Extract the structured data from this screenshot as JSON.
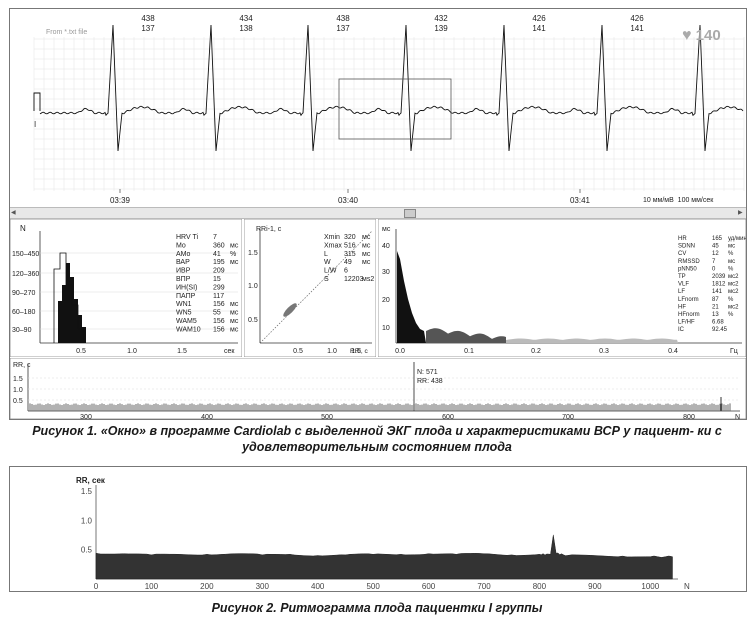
{
  "figure1": {
    "ecg": {
      "source": "From *.txt file",
      "heart_rate": "140",
      "heart_rate_icon": "heart-icon",
      "markers": [
        {
          "top": "438",
          "bottom": "137"
        },
        {
          "top": "434",
          "bottom": "138"
        },
        {
          "top": "438",
          "bottom": "137"
        },
        {
          "top": "432",
          "bottom": "139"
        },
        {
          "top": "426",
          "bottom": "141"
        },
        {
          "top": "426",
          "bottom": "141"
        }
      ],
      "time_labels": [
        "03:39",
        "03:40",
        "03:41"
      ],
      "scale_label": "10 мм/мВ  100 мм/сек",
      "lead_label": "I"
    },
    "histogram": {
      "ylabel": "N",
      "xlabel": "сек",
      "yticks": [
        "150–450",
        "120–360",
        "90–270",
        "60–180",
        "30–90"
      ],
      "xticks": [
        "0.5",
        "1.0",
        "1.5"
      ],
      "stats": [
        [
          "HRV Ti",
          "7",
          ""
        ],
        [
          "Mo",
          "360",
          "мс"
        ],
        [
          "AMo",
          "41",
          "%"
        ],
        [
          "ВАР",
          "195",
          "мс"
        ],
        [
          "ИВР",
          "209",
          ""
        ],
        [
          "ВПР",
          "15",
          ""
        ],
        [
          "ИН(SI)",
          "299",
          ""
        ],
        [
          "ПАПР",
          "117",
          ""
        ],
        [
          "WN1",
          "156",
          "мс"
        ],
        [
          "WN5",
          "55",
          "мс"
        ],
        [
          "WAM5",
          "156",
          "мс"
        ],
        [
          "WAM10",
          "156",
          "мс"
        ]
      ]
    },
    "scatter": {
      "ylabel": "RRi-1, с",
      "xlabel": "RRi, с",
      "yticks": [
        "1.5",
        "1.0",
        "0.5"
      ],
      "xticks": [
        "0.5",
        "1.0",
        "1.5"
      ],
      "stats": [
        [
          "Xmin",
          "320",
          "мс"
        ],
        [
          "Xmax",
          "516",
          "мс"
        ],
        [
          "L",
          "315",
          "мс"
        ],
        [
          "W",
          "49",
          "мс"
        ],
        [
          "L/W",
          "6",
          ""
        ],
        [
          "S",
          "12203",
          "мs2"
        ]
      ]
    },
    "spectrum": {
      "ylabel": "мс",
      "xlabel": "Гц",
      "yticks": [
        "40",
        "30",
        "20",
        "10"
      ],
      "xticks": [
        "0.0",
        "0.1",
        "0.2",
        "0.3",
        "0.4"
      ],
      "stats": [
        [
          "HR",
          "165",
          "уд/мин"
        ],
        [
          "SDNN",
          "45",
          "мс"
        ],
        [
          "CV",
          "12",
          "%"
        ],
        [
          "RMSSD",
          "7",
          "мс"
        ],
        [
          "pNN50",
          "0",
          "%"
        ],
        [
          "TP",
          "2039",
          "мс2"
        ],
        [
          "VLF",
          "1812",
          "мс2"
        ],
        [
          "LF",
          "141",
          "мс2"
        ],
        [
          "LFnorm",
          "87",
          "%"
        ],
        [
          "HF",
          "21",
          "мс2"
        ],
        [
          "HFnorm",
          "13",
          "%"
        ],
        [
          "LF/HF",
          "6.68",
          ""
        ],
        [
          "IC",
          "92.45",
          ""
        ]
      ]
    },
    "rhythm": {
      "ylabel": "RR, с",
      "xlabel": "N",
      "yticks": [
        "1.5",
        "1.0",
        "0.5"
      ],
      "xticks": [
        "300",
        "400",
        "500",
        "600",
        "700",
        "800"
      ],
      "cursor_n": "N: 571",
      "cursor_rr": "RR: 438"
    },
    "caption": "Рисунок 1. «Окно» в программе Cardiolab с выделенной ЭКГ плода и характеристиками ВСР у пациент- ки с удовлетворительным состоянием плода"
  },
  "figure2": {
    "chart_data": {
      "type": "area",
      "title": "",
      "ylabel": "RR, сек",
      "xlabel": "N",
      "xlim": [
        0,
        1050
      ],
      "ylim": [
        0,
        1.6
      ],
      "yticks": [
        "1.5",
        "1.0",
        "0.5"
      ],
      "xticks": [
        "0",
        "100",
        "200",
        "300",
        "400",
        "500",
        "600",
        "700",
        "800",
        "900",
        "1000"
      ],
      "x": [
        0,
        50,
        100,
        150,
        200,
        250,
        300,
        350,
        400,
        450,
        500,
        550,
        600,
        650,
        700,
        750,
        800,
        820,
        825,
        830,
        850,
        900,
        950,
        1000,
        1040
      ],
      "y": [
        0.44,
        0.43,
        0.41,
        0.42,
        0.42,
        0.43,
        0.41,
        0.42,
        0.4,
        0.41,
        0.42,
        0.42,
        0.43,
        0.42,
        0.43,
        0.41,
        0.42,
        0.42,
        0.75,
        0.44,
        0.4,
        0.4,
        0.39,
        0.38,
        0.38
      ]
    },
    "caption": "Рисунок 2. Ритмограмма плода пациентки I группы"
  }
}
